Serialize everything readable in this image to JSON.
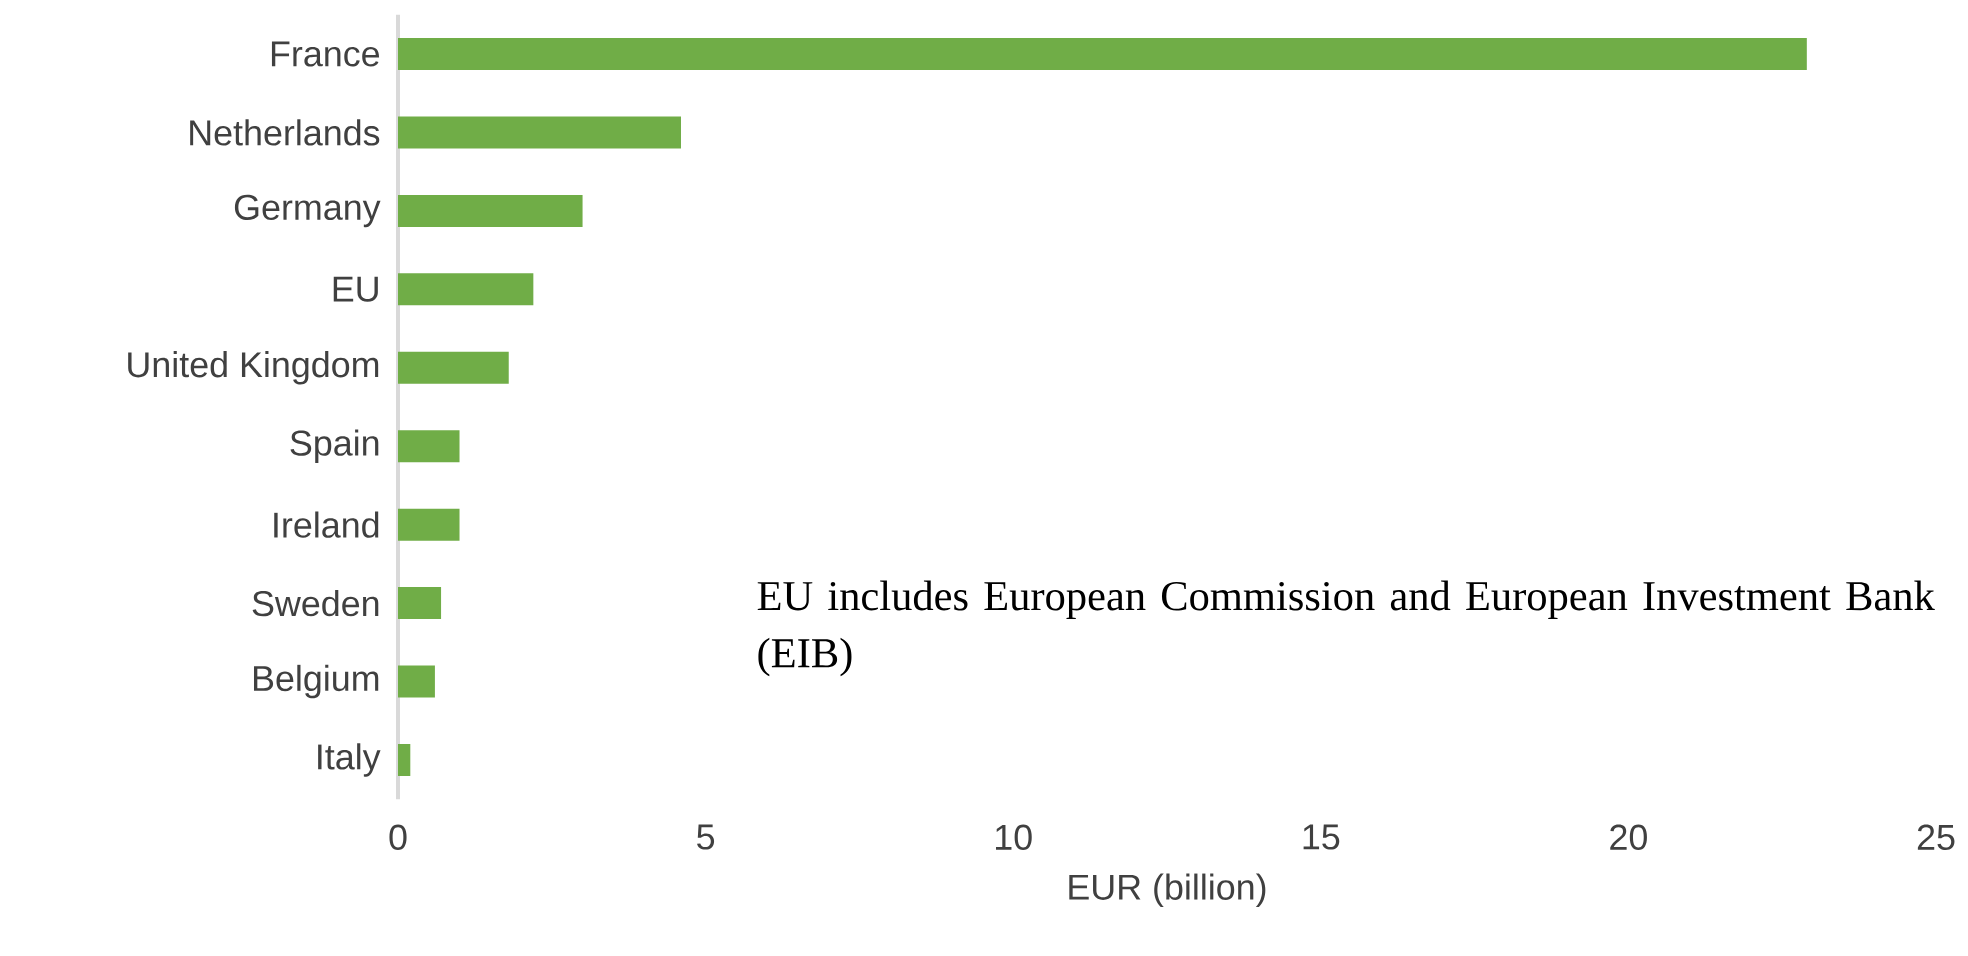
{
  "chart_data": {
    "type": "bar",
    "orientation": "horizontal",
    "categories": [
      "France",
      "Netherlands",
      "Germany",
      "EU",
      "United Kingdom",
      "Spain",
      "Ireland",
      "Sweden",
      "Belgium",
      "Italy"
    ],
    "values": [
      22.9,
      4.6,
      3.0,
      2.2,
      1.8,
      1.0,
      1.0,
      0.7,
      0.6,
      0.2
    ],
    "color": "#70ad47",
    "xlabel": "EUR (billion)",
    "xlim": [
      0,
      25
    ],
    "xticks": [
      0,
      5,
      10,
      15,
      20,
      25
    ],
    "annotations": [
      "EU includes European Commission and European Investment Bank (EIB)"
    ]
  }
}
